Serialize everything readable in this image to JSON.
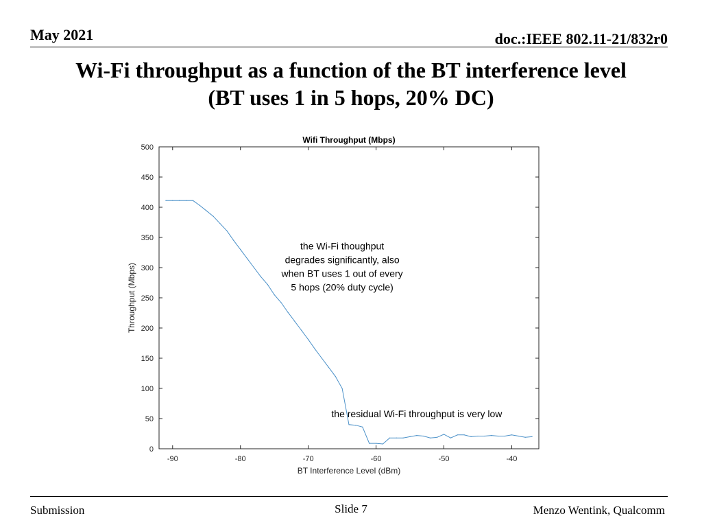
{
  "header": {
    "date": "May 2021",
    "doc": "doc.:IEEE 802.11-21/832r0"
  },
  "slide": {
    "title_line1": "Wi-Fi throughput as a function of the BT interference level",
    "title_line2": "(BT uses 1 in 5 hops, 20% DC)"
  },
  "footer": {
    "left": "Submission",
    "center": "Slide 7",
    "right": "Menzo Wentink, Qualcomm"
  },
  "chart_data": {
    "type": "line",
    "title": "Wifi Throughput (Mbps)",
    "xlabel": "BT Interference Level (dBm)",
    "ylabel": "Throughput (Mbps)",
    "xlim": [
      -92,
      -36
    ],
    "ylim": [
      0,
      500
    ],
    "xticks": [
      -90,
      -80,
      -70,
      -60,
      -50,
      -40
    ],
    "yticks": [
      0,
      50,
      100,
      150,
      200,
      250,
      300,
      350,
      400,
      450,
      500
    ],
    "grid": false,
    "line_color": "#4a90c8",
    "series": [
      {
        "x": [
          -91,
          -90,
          -89,
          -88,
          -87,
          -86,
          -85,
          -84,
          -83,
          -82,
          -81,
          -80,
          -79,
          -78,
          -77,
          -76,
          -75,
          -74,
          -73,
          -72,
          -71,
          -70,
          -69,
          -68,
          -67,
          -66,
          -65,
          -64,
          -63,
          -62,
          -61,
          -60,
          -59,
          -58,
          -57,
          -56,
          -55,
          -54,
          -53,
          -52,
          -51,
          -50,
          -49,
          -48,
          -47,
          -46,
          -45,
          -44,
          -43,
          -42,
          -41,
          -40,
          -39,
          -38,
          -37
        ],
        "y": [
          411,
          411,
          411,
          411,
          411,
          403,
          394,
          385,
          373,
          361,
          345,
          330,
          315,
          300,
          285,
          272,
          255,
          242,
          226,
          211,
          196,
          181,
          165,
          150,
          135,
          120,
          100,
          40,
          39,
          36,
          9,
          9,
          8,
          18,
          18,
          18,
          20,
          22,
          21,
          18,
          19,
          24,
          18,
          23,
          23,
          20,
          21,
          21,
          22,
          21,
          21,
          23,
          21,
          19,
          20
        ]
      }
    ],
    "annotations": [
      {
        "text_lines": [
          "the Wi-Fi thoughput",
          "degrades significantly, also",
          "when BT uses 1 out of every",
          "5 hops (20% duty cycle)"
        ],
        "x": -65,
        "y": 330
      },
      {
        "text_lines": [
          "the residual Wi-Fi throughput is very low"
        ],
        "x": -54,
        "y": 52
      }
    ]
  }
}
